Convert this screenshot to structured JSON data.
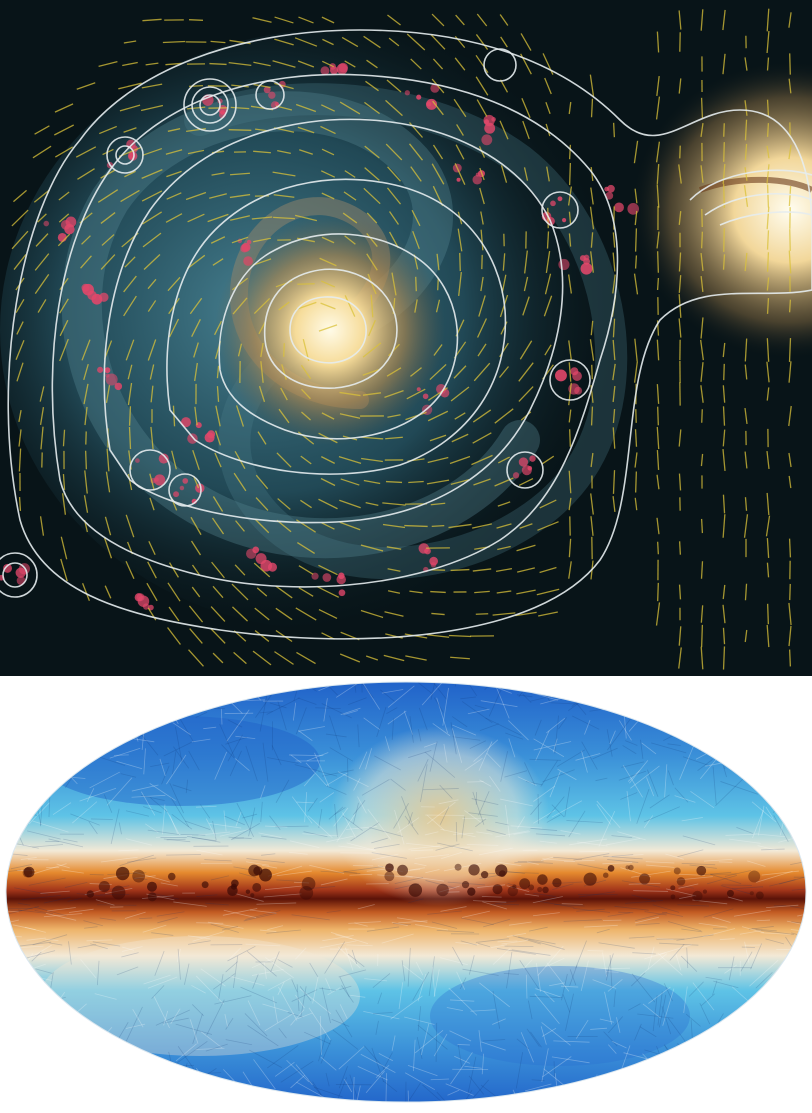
{
  "figure": {
    "panels": [
      {
        "id": "galaxy-polarization-map",
        "subject": "spiral-galaxy-with-companion",
        "overlays": [
          "polarized-intensity-contours",
          "magnetic-field-vectors"
        ],
        "colors": {
          "background": "#081418",
          "disk_glow": "#3f7f93",
          "core": "#fff1c8",
          "hii_regions": "#e2476a",
          "contours": "#e6ecee",
          "vectors": "#d9c23a"
        }
      },
      {
        "id": "all-sky-dust-polarization-map",
        "projection": "mollweide",
        "texture": "line-integral-convolution",
        "colors": {
          "low_emission": "#1f5fc8",
          "mid_emission": "#5ec3e6",
          "neutral": "#f3e9d6",
          "high_emission": "#e58a2e",
          "plane": "#5a1208"
        }
      }
    ]
  }
}
